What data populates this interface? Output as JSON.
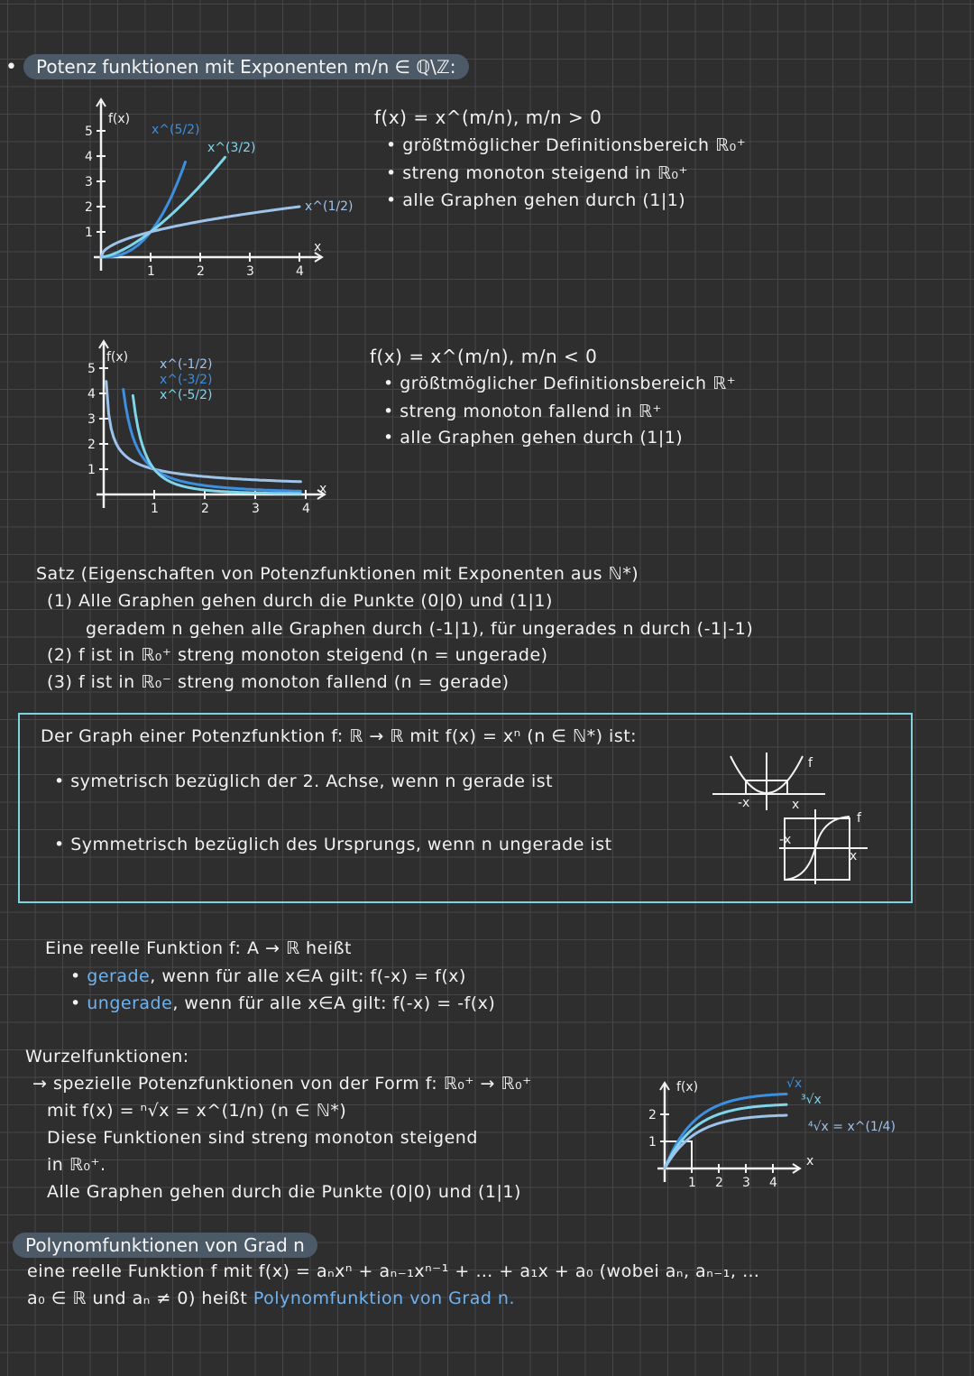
{
  "colors": {
    "background": "#2e2e2f",
    "grid": "#474749",
    "pill": "#4c5a68",
    "box_border": "#7fd3df",
    "curve_dark": "#3d8fe0",
    "curve_cyan": "#7fd6ea",
    "curve_light": "#9ec3ea",
    "highlight": "#6fb2ee"
  },
  "section1": {
    "bullet": "•",
    "title": "Potenz funktionen mit Exponenten m/n ∈ ℚ\\ℤ:"
  },
  "graph1": {
    "y_label": "f(x)",
    "x_label": "x",
    "x_ticks": [
      "1",
      "2",
      "3",
      "4"
    ],
    "y_ticks": [
      "1",
      "2",
      "3",
      "4",
      "5"
    ],
    "curves": [
      {
        "label": "x^(5/2)",
        "exponent": 2.5
      },
      {
        "label": "x^(3/2)",
        "exponent": 1.5
      },
      {
        "label": "x^(1/2)",
        "exponent": 0.5
      }
    ]
  },
  "block1": {
    "formula": "f(x) = x^(m/n),  m/n > 0",
    "items": [
      "• größtmöglicher Definitionsbereich ℝ₀⁺",
      "• streng monoton steigend in ℝ₀⁺",
      "• alle Graphen gehen durch (1|1)"
    ]
  },
  "graph2": {
    "y_label": "f(x)",
    "x_label": "x",
    "x_ticks": [
      "1",
      "2",
      "3",
      "4"
    ],
    "y_ticks": [
      "1",
      "2",
      "3",
      "4",
      "5"
    ],
    "curves": [
      {
        "label": "x^(-1/2)",
        "exponent": -0.5
      },
      {
        "label": "x^(-3/2)",
        "exponent": -1.5
      },
      {
        "label": "x^(-5/2)",
        "exponent": -2.5
      }
    ]
  },
  "block2": {
    "formula": "f(x) = x^(m/n),  m/n < 0",
    "items": [
      "• größtmöglicher Definitionsbereich ℝ⁺",
      "• streng monoton fallend in ℝ⁺",
      "• alle Graphen gehen durch (1|1)"
    ]
  },
  "satz": {
    "title": "Satz (Eigenschaften von Potenzfunktionen mit Exponenten aus ℕ*)",
    "lines": [
      "(1) Alle Graphen gehen durch die Punkte (0|0) und (1|1)",
      "geradem n gehen alle Graphen durch (-1|1), für ungerades n durch (-1|-1)",
      "(2) f ist in ℝ₀⁺ streng monoton steigend (n = ungerade)",
      "(3) f ist in ℝ₀⁻ streng monoton fallend (n = gerade)"
    ]
  },
  "box": {
    "title": "Der Graph einer Potenzfunktion f: ℝ → ℝ mit f(x) = xⁿ (n ∈ ℕ*) ist:",
    "even": "• symetrisch bezüglich der 2. Achse, wenn n gerade ist",
    "odd": "• Symmetrisch bezüglich des Ursprungs, wenn n ungerade ist",
    "sketch_labels": {
      "f": "f",
      "x": "x",
      "neg_x": "-x"
    }
  },
  "parity": {
    "intro": "Eine reelle Funktion f: A → ℝ heißt",
    "even_word": "gerade",
    "even_rest": ", wenn für alle x∈A gilt: f(-x) = f(x)",
    "odd_word": "ungerade",
    "odd_rest": ", wenn für alle x∈A gilt: f(-x) = -f(x)",
    "bullet": "•"
  },
  "wurzel": {
    "title": "Wurzelfunktionen:",
    "lines": [
      "→ spezielle Potenzfunktionen von der Form f: ℝ₀⁺ → ℝ₀⁺",
      "mit f(x) = ⁿ√x = x^(1/n) (n ∈ ℕ*)",
      "Diese Funktionen sind streng monoton steigend",
      "in ℝ₀⁺.",
      "Alle Graphen gehen durch die Punkte (0|0) und (1|1)"
    ],
    "graph": {
      "y_label": "f(x)",
      "x_label": "x",
      "x_ticks": [
        "1",
        "2",
        "3",
        "4"
      ],
      "y_ticks": [
        "1",
        "2"
      ],
      "curve_labels": [
        "√x",
        "³√x",
        "⁴√x = x^(1/4)"
      ]
    }
  },
  "polynom": {
    "title": "Polynomfunktionen von Grad n",
    "line1": "eine reelle Funktion f mit f(x) = aₙxⁿ + aₙ₋₁xⁿ⁻¹ + … + a₁x + a₀ (wobei aₙ, aₙ₋₁, …",
    "line2_a": "a₀ ∈ ℝ und aₙ ≠ 0) heißt ",
    "line2_b": "Polynomfunktion von Grad n."
  }
}
